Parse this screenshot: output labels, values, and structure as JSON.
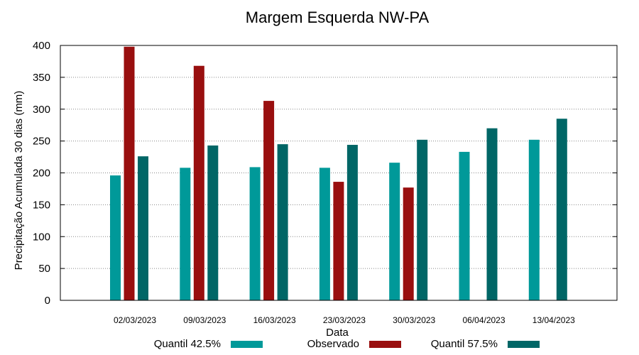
{
  "chart_data": {
    "type": "bar",
    "title": "Margem Esquerda NW-PA",
    "xlabel": "Data",
    "ylabel": "Precipitação Acumulada 30 dias (mm)",
    "ylim": [
      0,
      400
    ],
    "yticks": [
      0,
      50,
      100,
      150,
      200,
      250,
      300,
      350,
      400
    ],
    "grid": true,
    "legend_position": "bottom",
    "categories": [
      "02/03/2023",
      "09/03/2023",
      "16/03/2023",
      "23/03/2023",
      "30/03/2023",
      "06/04/2023",
      "13/04/2023"
    ],
    "series": [
      {
        "name": "Quantil 42.5%",
        "color": "#009999",
        "values": [
          196,
          208,
          209,
          208,
          216,
          233,
          252
        ]
      },
      {
        "name": "Observado",
        "color": "#990f0f",
        "values": [
          398,
          368,
          313,
          186,
          177,
          null,
          null
        ]
      },
      {
        "name": "Quantil 57.5%",
        "color": "#006666",
        "values": [
          226,
          243,
          245,
          244,
          252,
          270,
          285
        ]
      }
    ]
  }
}
